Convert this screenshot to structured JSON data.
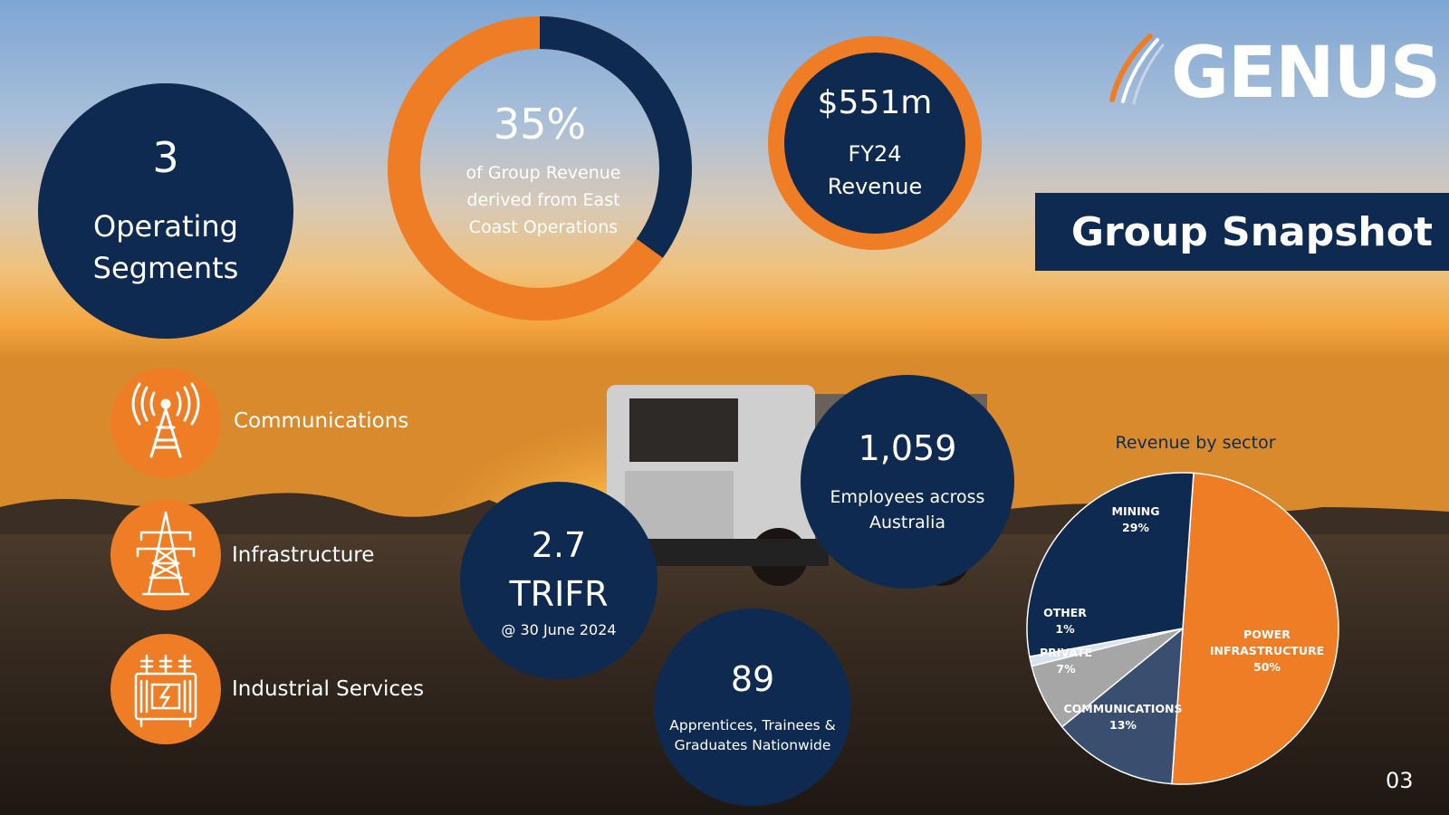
{
  "logo": {
    "text": "GENUS"
  },
  "banner": {
    "title": "Group Snapshot"
  },
  "page_number": "03",
  "operating_segments": {
    "value": "3",
    "label": "Operating Segments"
  },
  "east_coast": {
    "value": "35%",
    "label": "of Group Revenue derived from East Coast Operations",
    "percent": 35
  },
  "revenue": {
    "value": "$551m",
    "label": "FY24 Revenue"
  },
  "segments": [
    {
      "label": "Communications",
      "icon": "radio-tower-icon"
    },
    {
      "label": "Infrastructure",
      "icon": "power-pylon-icon"
    },
    {
      "label": "Industrial Services",
      "icon": "transformer-icon"
    }
  ],
  "employees": {
    "value": "1,059",
    "label": "Employees across Australia"
  },
  "trifr": {
    "value": "2.7",
    "unit": "TRIFR",
    "date": "@ 30 June 2024"
  },
  "apprentices": {
    "value": "89",
    "label": "Apprentices, Trainees & Graduates Nationwide"
  },
  "colors": {
    "navy": "#0f2a50",
    "orange": "#ee7d26",
    "comm_blue": "#3a4f70",
    "grey": "#a6a6a6",
    "light": "#d9e2ef"
  },
  "chart_data": {
    "type": "pie",
    "title": "Revenue by sector",
    "slices": [
      {
        "name": "POWER INFRASTRUCTURE",
        "value": 50,
        "label": "50%",
        "color": "#ee7d26"
      },
      {
        "name": "COMMUNICATIONS",
        "value": 13,
        "label": "13%",
        "color": "#3a4f70"
      },
      {
        "name": "PRIVATE",
        "value": 7,
        "label": "7%",
        "color": "#a6a6a6"
      },
      {
        "name": "OTHER",
        "value": 1,
        "label": "1%",
        "color": "#d9e2ef"
      },
      {
        "name": "MINING",
        "value": 29,
        "label": "29%",
        "color": "#0f2a50"
      }
    ]
  }
}
